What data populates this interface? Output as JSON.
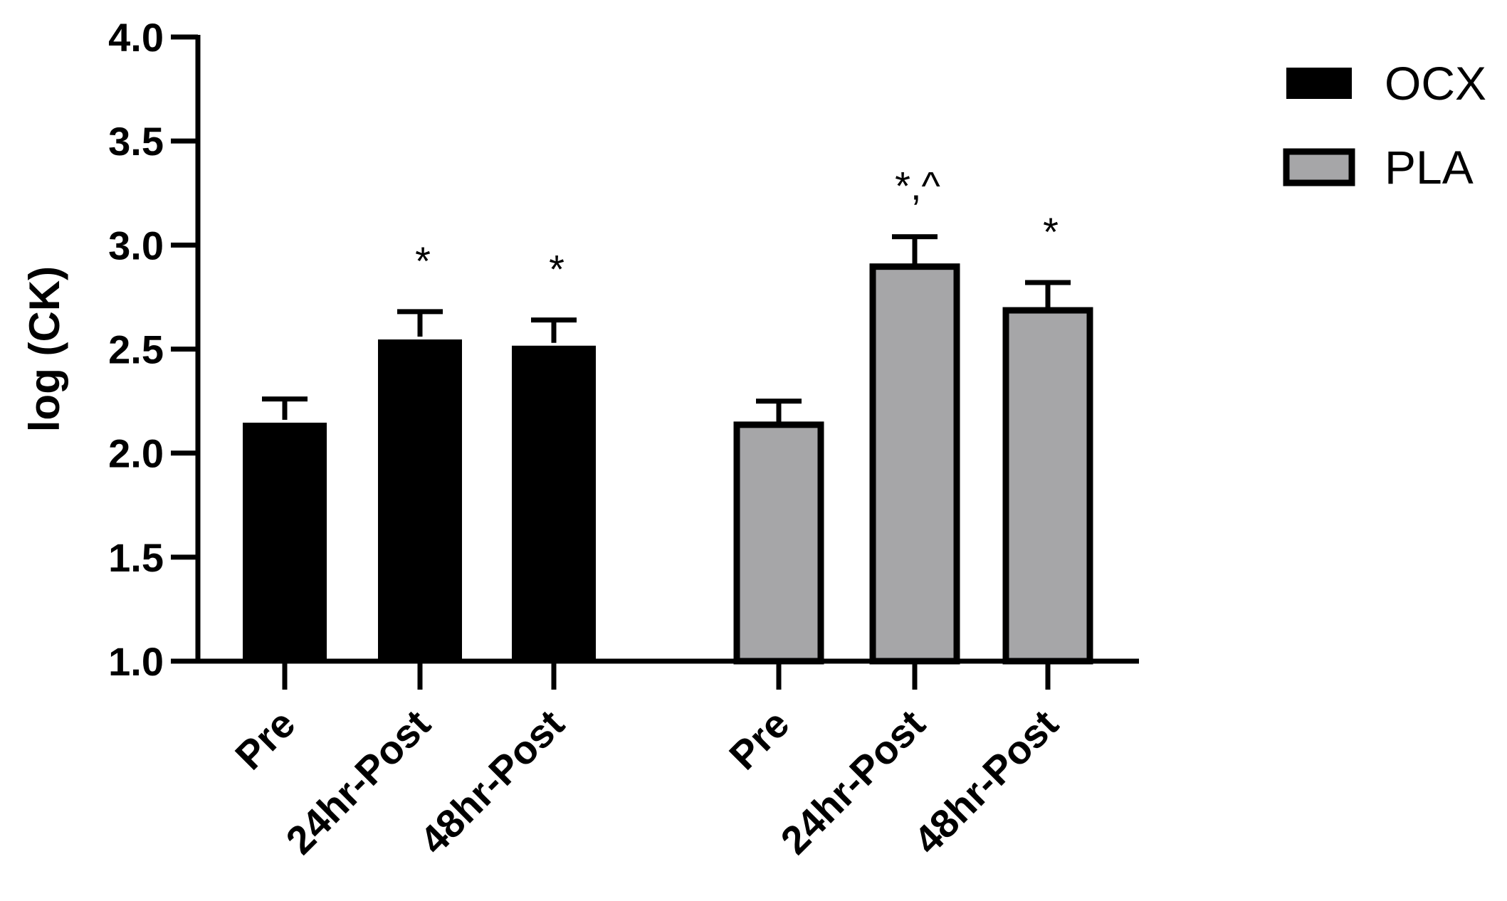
{
  "chart_data": {
    "type": "bar",
    "ylabel": "log (CK)",
    "ylim": [
      1.0,
      4.0
    ],
    "yticks": [
      "1.0",
      "1.5",
      "2.0",
      "2.5",
      "3.0",
      "3.5",
      "4.0"
    ],
    "groups": [
      {
        "name": "OCX",
        "color": "#000000",
        "categories": [
          "Pre",
          "24hr-Post",
          "48hr-Post"
        ],
        "values": [
          2.16,
          2.56,
          2.53
        ],
        "errors": [
          0.1,
          0.12,
          0.11
        ],
        "annotations": [
          "",
          "*",
          "*"
        ]
      },
      {
        "name": "PLA",
        "color": "#a6a6a8",
        "categories": [
          "Pre",
          "24hr-Post",
          "48hr-Post"
        ],
        "values": [
          2.15,
          2.91,
          2.7
        ],
        "errors": [
          0.1,
          0.13,
          0.12
        ],
        "annotations": [
          "",
          "*,^",
          "*"
        ]
      }
    ],
    "legend": {
      "position": "top-right",
      "entries": [
        {
          "label": "OCX",
          "color": "#000000"
        },
        {
          "label": "PLA",
          "color": "#a6a6a8"
        }
      ]
    },
    "grid": false
  }
}
